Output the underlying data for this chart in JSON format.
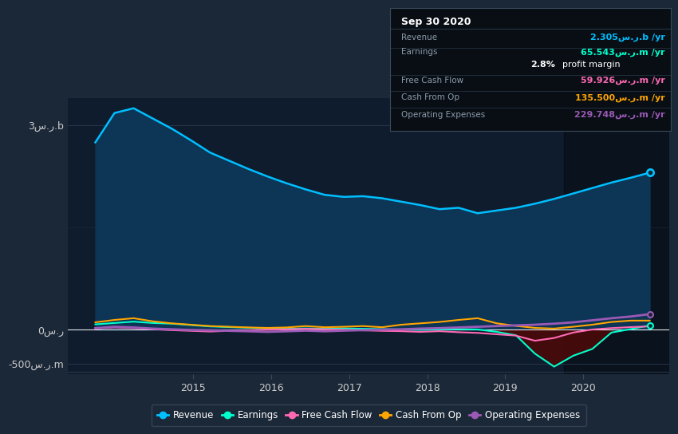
{
  "bg_color": "#1b2838",
  "plot_bg_color": "#0f1c2e",
  "plot_bg_lighter": "#152030",
  "grid_color": "#2a3a4a",
  "text_color": "#cccccc",
  "ytick_labels": [
    "-500س.ر.m",
    "0س.ر",
    "3س.ر.b"
  ],
  "ytick_values": [
    -500,
    0,
    3000
  ],
  "xtick_years": [
    2015,
    2016,
    2017,
    2018,
    2019,
    2020
  ],
  "xlim": [
    2013.4,
    2021.1
  ],
  "ylim": [
    -650,
    3400
  ],
  "revenue": [
    2750,
    3180,
    3250,
    3100,
    2950,
    2780,
    2600,
    2480,
    2360,
    2250,
    2150,
    2060,
    1980,
    1950,
    1960,
    1930,
    1880,
    1830,
    1770,
    1790,
    1710,
    1750,
    1790,
    1850,
    1920,
    2000,
    2080,
    2160,
    2230,
    2305
  ],
  "earnings": [
    80,
    100,
    120,
    100,
    90,
    70,
    50,
    40,
    30,
    20,
    15,
    20,
    15,
    20,
    15,
    10,
    5,
    0,
    5,
    10,
    5,
    -30,
    -80,
    -350,
    -540,
    -380,
    -280,
    -40,
    10,
    65
  ],
  "fcf": [
    20,
    35,
    25,
    10,
    -5,
    -15,
    -25,
    -15,
    -8,
    2,
    8,
    15,
    8,
    2,
    -8,
    -15,
    -20,
    -30,
    -20,
    -35,
    -45,
    -65,
    -85,
    -160,
    -120,
    -40,
    5,
    25,
    40,
    50
  ],
  "cashfromop": [
    110,
    145,
    170,
    125,
    95,
    75,
    55,
    45,
    35,
    28,
    35,
    55,
    38,
    45,
    55,
    38,
    75,
    95,
    115,
    145,
    170,
    95,
    58,
    28,
    18,
    45,
    75,
    115,
    135,
    135
  ],
  "opex": [
    25,
    45,
    35,
    18,
    8,
    -2,
    -8,
    -15,
    -22,
    -30,
    -22,
    -12,
    -22,
    -12,
    -5,
    2,
    8,
    18,
    25,
    35,
    45,
    55,
    65,
    75,
    90,
    110,
    140,
    170,
    195,
    230
  ],
  "revenue_color": "#00bfff",
  "earnings_color": "#00ffcc",
  "fcf_color": "#ff69b4",
  "cashfromop_color": "#ffa500",
  "opex_color": "#9b59b6",
  "highlight_start": 2019.75,
  "n_points": 30,
  "x_start": 2013.75,
  "x_end": 2020.85,
  "legend": [
    {
      "label": "Revenue",
      "color": "#00bfff"
    },
    {
      "label": "Earnings",
      "color": "#00ffcc"
    },
    {
      "label": "Free Cash Flow",
      "color": "#ff69b4"
    },
    {
      "label": "Cash From Op",
      "color": "#ffa500"
    },
    {
      "label": "Operating Expenses",
      "color": "#9b59b6"
    }
  ]
}
